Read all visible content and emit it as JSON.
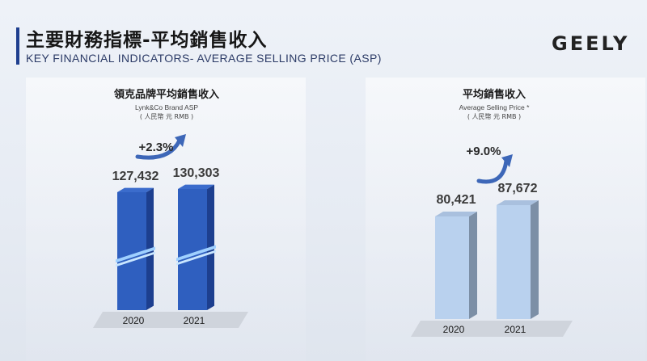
{
  "header": {
    "title_cn": "主要財務指標-平均銷售收入",
    "title_en": "KEY FINANCIAL INDICATORS- AVERAGE SELLING PRICE (ASP)",
    "logo": "GEELY"
  },
  "chart_data": [
    {
      "type": "bar",
      "title": "領克品牌平均銷售收入",
      "subtitle": "Lynk&Co Brand ASP",
      "unit": "( 人民幣 元 RMB )",
      "categories": [
        "2020",
        "2021"
      ],
      "values": [
        127432,
        130303
      ],
      "labels": [
        "127,432",
        "130,303"
      ],
      "growth": "+2.3%",
      "color": "#2f5fbf",
      "color_dark": "#1d3f8f",
      "color_top": "#3b6ccc",
      "axis_break": true
    },
    {
      "type": "bar",
      "title": "平均銷售收入",
      "subtitle": "Average Selling Price *",
      "unit": "( 人民幣 元 RMB )",
      "categories": [
        "2020",
        "2021"
      ],
      "values": [
        80421,
        87672
      ],
      "labels": [
        "80,421",
        "87,672"
      ],
      "growth": "+9.0%",
      "color": "#b9d1ee",
      "color_dark": "#7c8fa6",
      "color_top": "#a9c0de",
      "axis_break": false
    }
  ]
}
